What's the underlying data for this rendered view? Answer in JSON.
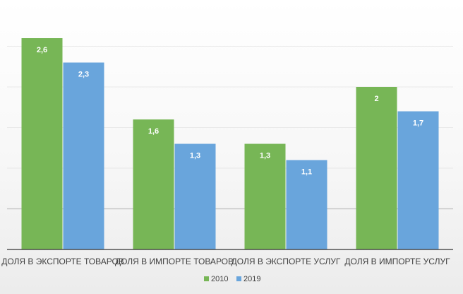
{
  "chart_data": {
    "type": "bar",
    "categories": [
      "ДОЛЯ В ЭКСПОРТЕ ТОВАРОВ",
      "ДОЛЯ В ИМПОРТЕ ТОВАРОВ",
      "ДОЛЯ В ЭКСПОРТЕ УСЛУГ",
      "ДОЛЯ В ИМПОРТЕ УСЛУГ"
    ],
    "series": [
      {
        "name": "2010",
        "values": [
          2.6,
          1.6,
          1.3,
          2.0
        ],
        "labels": [
          "2,6",
          "1,6",
          "1,3",
          "2"
        ],
        "color": "#77b656"
      },
      {
        "name": "2019",
        "values": [
          2.3,
          1.3,
          1.1,
          1.7
        ],
        "labels": [
          "2,3",
          "1,3",
          "1,1",
          "1,7"
        ],
        "color": "#69a5dc"
      }
    ],
    "ylim": [
      0,
      3
    ],
    "grid": true,
    "legend_position": "bottom"
  }
}
